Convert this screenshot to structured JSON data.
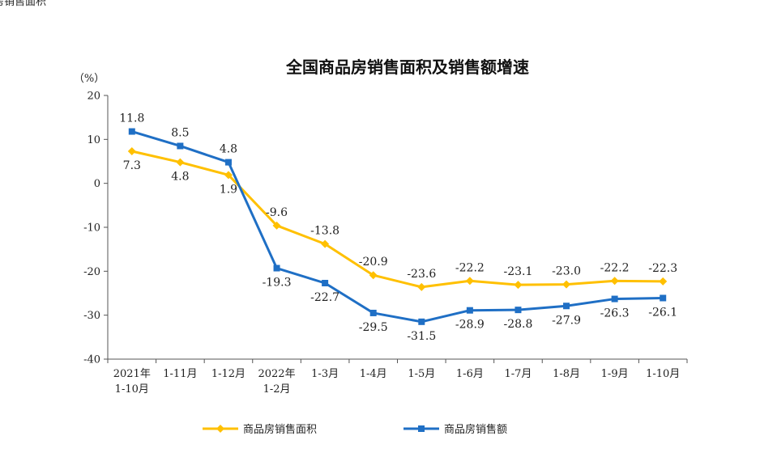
{
  "corner_text": "房销售面积",
  "chart_data": {
    "type": "line",
    "title": "全国商品房销售面积及销售额增速",
    "unit_label": "（%）",
    "ylim": [
      -40,
      20
    ],
    "yticks": [
      20,
      10,
      0,
      -10,
      -20,
      -30,
      -40
    ],
    "categories": [
      [
        "2021年",
        "1-10月"
      ],
      [
        "1-11月"
      ],
      [
        "1-12月"
      ],
      [
        "2022年",
        "1-2月"
      ],
      [
        "1-3月"
      ],
      [
        "1-4月"
      ],
      [
        "1-5月"
      ],
      [
        "1-6月"
      ],
      [
        "1-7月"
      ],
      [
        "1-8月"
      ],
      [
        "1-9月"
      ],
      [
        "1-10月"
      ]
    ],
    "series": [
      {
        "name": "商品房销售面积",
        "color": "#FFC000",
        "marker": "diamond",
        "values": [
          7.3,
          4.8,
          1.9,
          -9.6,
          -13.8,
          -20.9,
          -23.6,
          -22.2,
          -23.1,
          -23.0,
          -22.2,
          -22.3
        ],
        "labels": [
          "7.3",
          "4.8",
          "1.9",
          "-9.6",
          "-13.8",
          "-20.9",
          "-23.6",
          "-22.2",
          "-23.1",
          "-23.0",
          "-22.2",
          "-22.3"
        ],
        "label_side": [
          "below",
          "below",
          "below",
          "above",
          "above",
          "above",
          "above",
          "above",
          "above",
          "above",
          "above",
          "above"
        ]
      },
      {
        "name": "商品房销售额",
        "color": "#1F6FC5",
        "marker": "square",
        "values": [
          11.8,
          8.5,
          4.8,
          -19.3,
          -22.7,
          -29.5,
          -31.5,
          -28.9,
          -28.8,
          -27.9,
          -26.3,
          -26.1
        ],
        "labels": [
          "11.8",
          "8.5",
          "4.8",
          "-19.3",
          "-22.7",
          "-29.5",
          "-31.5",
          "-28.9",
          "-28.8",
          "-27.9",
          "-26.3",
          "-26.1"
        ],
        "label_side": [
          "above",
          "above",
          "above",
          "below",
          "below",
          "below",
          "below",
          "below",
          "below",
          "below",
          "below",
          "below"
        ]
      }
    ],
    "grid": false,
    "legend_position": "bottom"
  }
}
